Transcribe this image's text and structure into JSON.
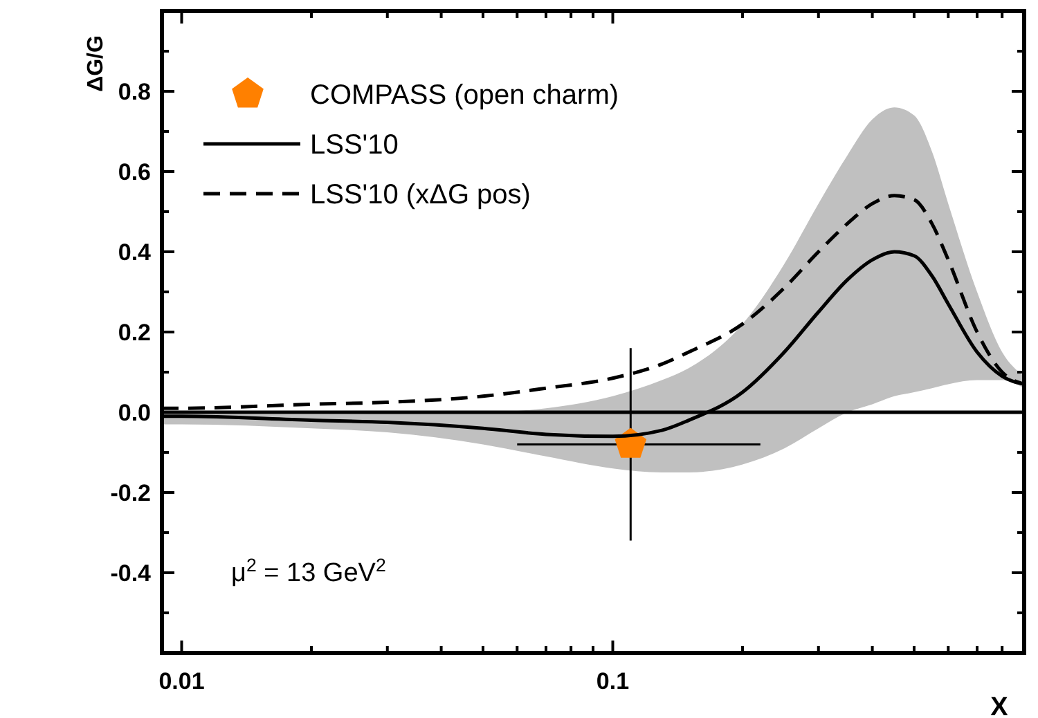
{
  "chart_data": {
    "type": "line",
    "xlabel": "X",
    "ylabel": "ΔG/G",
    "log": "x",
    "xlim": [
      0.009,
      0.9
    ],
    "ylim": [
      -0.6,
      1.0
    ],
    "xticks": [
      {
        "value": 0.01,
        "label": "0.01"
      },
      {
        "value": 0.02,
        "label": null
      },
      {
        "value": 0.03,
        "label": null
      },
      {
        "value": 0.04,
        "label": null
      },
      {
        "value": 0.05,
        "label": null
      },
      {
        "value": 0.06,
        "label": null
      },
      {
        "value": 0.07,
        "label": null
      },
      {
        "value": 0.08,
        "label": null
      },
      {
        "value": 0.09,
        "label": null
      },
      {
        "value": 0.1,
        "label": "0.1"
      },
      {
        "value": 0.2,
        "label": null
      },
      {
        "value": 0.3,
        "label": null
      },
      {
        "value": 0.4,
        "label": null
      },
      {
        "value": 0.5,
        "label": null
      },
      {
        "value": 0.6,
        "label": null
      },
      {
        "value": 0.7,
        "label": null
      },
      {
        "value": 0.8,
        "label": null
      },
      {
        "value": 0.9,
        "label": null
      }
    ],
    "yticks": [
      {
        "value": -0.5,
        "label": null
      },
      {
        "value": -0.4,
        "label": "-0.4"
      },
      {
        "value": -0.3,
        "label": null
      },
      {
        "value": -0.2,
        "label": "-0.2"
      },
      {
        "value": -0.1,
        "label": null
      },
      {
        "value": 0,
        "label": "0.0"
      },
      {
        "value": 0.1,
        "label": null
      },
      {
        "value": 0.2,
        "label": "0.2"
      },
      {
        "value": 0.3,
        "label": null
      },
      {
        "value": 0.4,
        "label": "0.4"
      },
      {
        "value": 0.5,
        "label": null
      },
      {
        "value": 0.6,
        "label": "0.6"
      },
      {
        "value": 0.7,
        "label": null
      },
      {
        "value": 0.8,
        "label": "0.8"
      },
      {
        "value": 0.9,
        "label": null
      }
    ],
    "grid": false,
    "legend": "top left",
    "ref_lines": [
      {
        "axis": "y",
        "value": 0,
        "color": "#000000"
      }
    ],
    "annotations": [
      "μ$^{2}$ = 13 GeV$^{2}$"
    ],
    "series": [
      {
        "name": "COMPASS (open charm)",
        "type": "scatter",
        "color": "#ff8000",
        "x": [
          0.11
        ],
        "values": [
          -0.08
        ],
        "errors": [
          [
            -0.32,
            0.16
          ]
        ],
        "xerrors": [
          [
            0.06,
            0.22
          ]
        ]
      },
      {
        "name": "LSS'10",
        "line_style": "solid",
        "color": "#000000",
        "x": [
          0.009,
          0.01,
          0.02,
          0.03,
          0.05,
          0.07,
          0.1,
          0.13,
          0.15,
          0.2,
          0.25,
          0.3,
          0.35,
          0.4,
          0.45,
          0.5,
          0.55,
          0.6,
          0.7,
          0.8,
          0.9
        ],
        "values": [
          -0.01,
          -0.01,
          -0.02,
          -0.025,
          -0.04,
          -0.055,
          -0.06,
          -0.045,
          -0.02,
          0.05,
          0.15,
          0.25,
          0.33,
          0.38,
          0.4,
          0.39,
          0.34,
          0.27,
          0.15,
          0.09,
          0.07
        ],
        "lower": [
          -0.03,
          -0.03,
          -0.04,
          -0.05,
          -0.08,
          -0.11,
          -0.14,
          -0.15,
          -0.15,
          -0.13,
          -0.09,
          -0.04,
          0.0,
          0.02,
          0.04,
          0.05,
          0.06,
          0.07,
          0.08,
          0.08,
          0.06
        ],
        "upper": [
          -0.005,
          -0.005,
          -0.005,
          -0.003,
          0.0,
          0.01,
          0.04,
          0.08,
          0.11,
          0.22,
          0.37,
          0.52,
          0.64,
          0.73,
          0.76,
          0.74,
          0.65,
          0.52,
          0.3,
          0.15,
          0.09
        ]
      },
      {
        "name": "LSS'10 (xΔG pos)",
        "line_style": "dashed",
        "color": "#000000",
        "x": [
          0.009,
          0.01,
          0.02,
          0.03,
          0.05,
          0.07,
          0.1,
          0.13,
          0.15,
          0.2,
          0.25,
          0.3,
          0.35,
          0.4,
          0.45,
          0.5,
          0.55,
          0.6,
          0.7,
          0.8,
          0.9
        ],
        "values": [
          0.01,
          0.01,
          0.02,
          0.025,
          0.04,
          0.06,
          0.085,
          0.12,
          0.15,
          0.22,
          0.31,
          0.4,
          0.47,
          0.52,
          0.54,
          0.53,
          0.47,
          0.38,
          0.2,
          0.1,
          0.07
        ]
      }
    ]
  }
}
